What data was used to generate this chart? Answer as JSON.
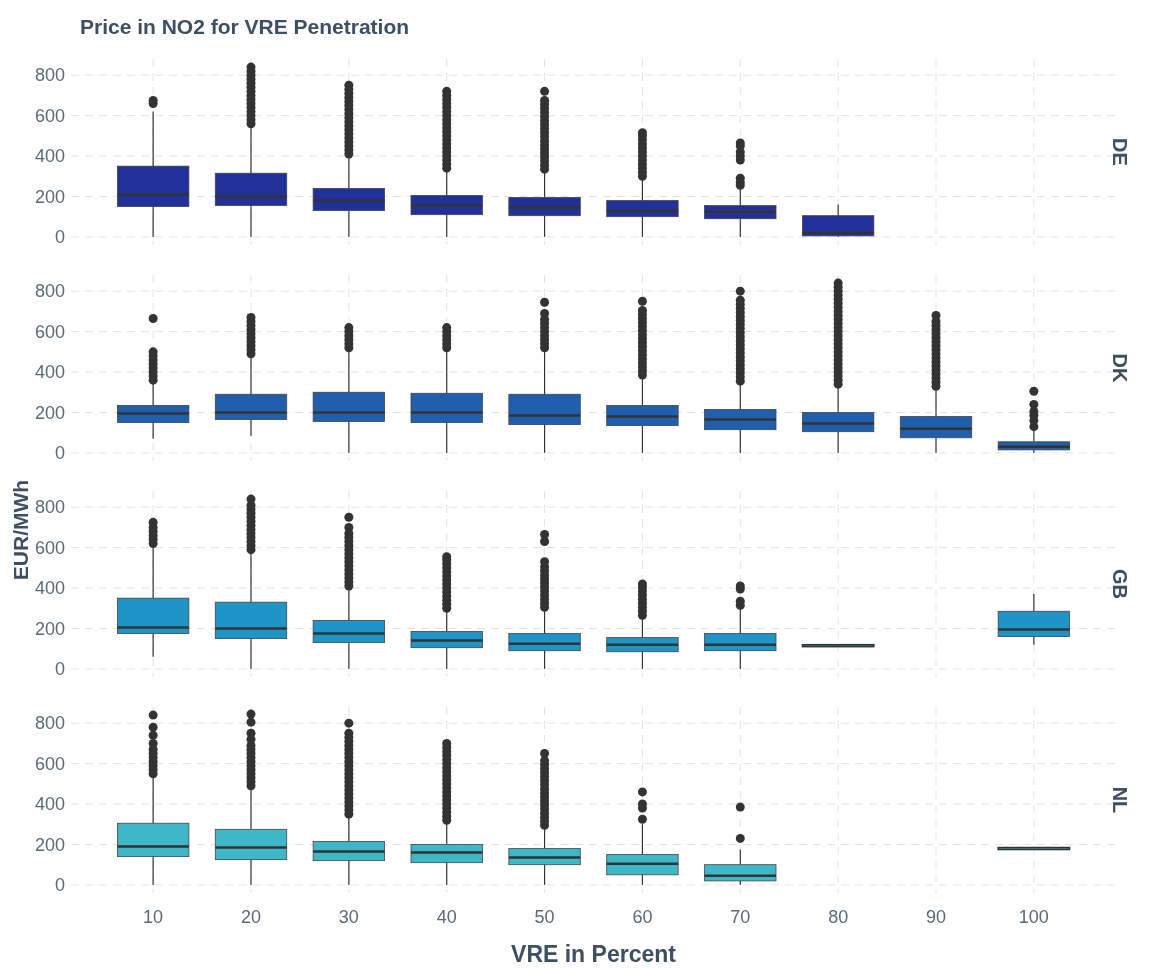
{
  "chart_data": [
    {
      "type": "box",
      "title": "Price in NO2 for VRE Penetration",
      "subtitle": "DE",
      "categories": [
        "10",
        "20",
        "30",
        "40",
        "50",
        "60",
        "70",
        "80",
        "90",
        "100"
      ],
      "color": "#22309a",
      "ylim": [
        -40,
        880
      ],
      "yticks": [
        0,
        200,
        400,
        600,
        800
      ],
      "grid": true,
      "tick_labels": "y",
      "boxes": [
        {
          "low": 0,
          "q1": 150,
          "median": 210,
          "q3": 350,
          "high": 620,
          "outliers": [
            660,
            675
          ]
        },
        {
          "low": 0,
          "q1": 155,
          "median": 200,
          "q3": 315,
          "high": 545,
          "outliers": [
            560,
            580,
            600,
            620,
            640,
            660,
            680,
            700,
            720,
            740,
            760,
            780,
            800,
            820,
            840
          ]
        },
        {
          "low": 0,
          "q1": 130,
          "median": 180,
          "q3": 240,
          "high": 400,
          "outliers": [
            410,
            430,
            450,
            470,
            490,
            510,
            530,
            550,
            570,
            590,
            610,
            630,
            650,
            670,
            690,
            710,
            730,
            750
          ]
        },
        {
          "low": 0,
          "q1": 110,
          "median": 155,
          "q3": 205,
          "high": 330,
          "outliers": [
            340,
            360,
            380,
            400,
            420,
            440,
            460,
            480,
            500,
            520,
            540,
            560,
            580,
            600,
            620,
            640,
            660,
            680,
            700,
            720
          ]
        },
        {
          "low": 0,
          "q1": 105,
          "median": 145,
          "q3": 195,
          "high": 325,
          "outliers": [
            335,
            355,
            375,
            395,
            415,
            435,
            455,
            475,
            495,
            515,
            535,
            555,
            575,
            595,
            615,
            635,
            655,
            675,
            720
          ]
        },
        {
          "low": 0,
          "q1": 100,
          "median": 130,
          "q3": 180,
          "high": 290,
          "outliers": [
            300,
            320,
            340,
            360,
            380,
            400,
            420,
            440,
            460,
            480,
            500,
            515
          ]
        },
        {
          "low": 0,
          "q1": 90,
          "median": 125,
          "q3": 155,
          "high": 240,
          "outliers": [
            255,
            270,
            290,
            380,
            400,
            420,
            450,
            465
          ]
        },
        {
          "low": 0,
          "q1": 5,
          "median": 20,
          "q3": 105,
          "high": 160
        },
        null,
        null
      ]
    },
    {
      "type": "box",
      "subtitle": "DK",
      "ylabel": "EUR/MWh",
      "categories": [
        "10",
        "20",
        "30",
        "40",
        "50",
        "60",
        "70",
        "80",
        "90",
        "100"
      ],
      "color": "#1f5fad",
      "ylim": [
        -40,
        880
      ],
      "yticks": [
        0,
        200,
        400,
        600,
        800
      ],
      "grid": true,
      "tick_labels": "y",
      "boxes": [
        {
          "low": 70,
          "q1": 150,
          "median": 195,
          "q3": 235,
          "high": 350,
          "outliers": [
            360,
            380,
            400,
            420,
            440,
            460,
            480,
            500,
            665
          ]
        },
        {
          "low": 85,
          "q1": 165,
          "median": 200,
          "q3": 290,
          "high": 480,
          "outliers": [
            490,
            510,
            530,
            550,
            570,
            590,
            610,
            630,
            650,
            670
          ]
        },
        {
          "low": 0,
          "q1": 155,
          "median": 200,
          "q3": 300,
          "high": 510,
          "outliers": [
            520,
            540,
            560,
            580,
            600,
            620
          ]
        },
        {
          "low": 0,
          "q1": 150,
          "median": 200,
          "q3": 295,
          "high": 510,
          "outliers": [
            520,
            540,
            560,
            580,
            600,
            620
          ]
        },
        {
          "low": 0,
          "q1": 140,
          "median": 185,
          "q3": 290,
          "high": 510,
          "outliers": [
            520,
            540,
            560,
            580,
            600,
            620,
            640,
            660,
            690,
            745
          ]
        },
        {
          "low": 0,
          "q1": 135,
          "median": 180,
          "q3": 235,
          "high": 375,
          "outliers": [
            385,
            405,
            425,
            445,
            465,
            485,
            505,
            525,
            545,
            565,
            585,
            605,
            625,
            645,
            665,
            685,
            705,
            750
          ]
        },
        {
          "low": 0,
          "q1": 115,
          "median": 165,
          "q3": 215,
          "high": 345,
          "outliers": [
            355,
            375,
            395,
            415,
            435,
            455,
            475,
            495,
            515,
            535,
            555,
            575,
            595,
            615,
            635,
            655,
            675,
            695,
            715,
            735,
            755,
            800
          ]
        },
        {
          "low": 0,
          "q1": 105,
          "median": 145,
          "q3": 200,
          "high": 330,
          "outliers": [
            340,
            360,
            380,
            400,
            420,
            440,
            460,
            480,
            500,
            520,
            540,
            560,
            580,
            600,
            620,
            640,
            660,
            680,
            700,
            720,
            740,
            760,
            780,
            800,
            820,
            840
          ]
        },
        {
          "low": 0,
          "q1": 75,
          "median": 120,
          "q3": 180,
          "high": 320,
          "outliers": [
            330,
            350,
            370,
            390,
            410,
            430,
            450,
            470,
            490,
            510,
            530,
            550,
            570,
            590,
            610,
            630,
            650,
            680
          ]
        },
        {
          "low": 0,
          "q1": 15,
          "median": 30,
          "q3": 55,
          "high": 110,
          "outliers": [
            130,
            160,
            185,
            205,
            240,
            305
          ]
        }
      ]
    },
    {
      "type": "box",
      "subtitle": "GB",
      "categories": [
        "10",
        "20",
        "30",
        "40",
        "50",
        "60",
        "70",
        "80",
        "90",
        "100"
      ],
      "color": "#1f94c6",
      "ylim": [
        -40,
        880
      ],
      "yticks": [
        0,
        200,
        400,
        600,
        800
      ],
      "grid": true,
      "tick_labels": "y",
      "boxes": [
        {
          "low": 60,
          "q1": 175,
          "median": 205,
          "q3": 350,
          "high": 610,
          "outliers": [
            620,
            640,
            660,
            680,
            700,
            725
          ]
        },
        {
          "low": 0,
          "q1": 150,
          "median": 200,
          "q3": 330,
          "high": 580,
          "outliers": [
            590,
            610,
            630,
            650,
            670,
            690,
            710,
            730,
            750,
            770,
            790,
            810,
            840
          ]
        },
        {
          "low": 0,
          "q1": 130,
          "median": 175,
          "q3": 240,
          "high": 400,
          "outliers": [
            410,
            430,
            450,
            470,
            490,
            510,
            530,
            550,
            570,
            590,
            610,
            630,
            650,
            670,
            700,
            750
          ]
        },
        {
          "low": 0,
          "q1": 105,
          "median": 140,
          "q3": 185,
          "high": 290,
          "outliers": [
            300,
            320,
            340,
            360,
            380,
            400,
            420,
            440,
            460,
            480,
            500,
            520,
            540,
            555
          ]
        },
        {
          "low": 0,
          "q1": 90,
          "median": 125,
          "q3": 175,
          "high": 295,
          "outliers": [
            305,
            325,
            345,
            365,
            385,
            405,
            425,
            445,
            465,
            485,
            505,
            530,
            630,
            665
          ]
        },
        {
          "low": 0,
          "q1": 85,
          "median": 120,
          "q3": 155,
          "high": 255,
          "outliers": [
            265,
            285,
            305,
            325,
            345,
            365,
            385,
            405,
            420
          ]
        },
        {
          "low": 0,
          "q1": 90,
          "median": 120,
          "q3": 175,
          "high": 300,
          "outliers": [
            315,
            335,
            395,
            410
          ]
        },
        {
          "low": 115,
          "q1": 115,
          "median": 115,
          "q3": 115,
          "high": 115
        },
        null,
        {
          "low": 120,
          "q1": 160,
          "median": 195,
          "q3": 285,
          "high": 370
        }
      ]
    },
    {
      "type": "box",
      "subtitle": "NL",
      "xlabel": "VRE in Percent",
      "categories": [
        "10",
        "20",
        "30",
        "40",
        "50",
        "60",
        "70",
        "80",
        "90",
        "100"
      ],
      "color": "#3eb8c8",
      "ylim": [
        -40,
        880
      ],
      "yticks": [
        0,
        200,
        400,
        600,
        800
      ],
      "grid": true,
      "boxes": [
        {
          "low": 0,
          "q1": 140,
          "median": 190,
          "q3": 305,
          "high": 540,
          "outliers": [
            550,
            570,
            590,
            610,
            630,
            650,
            670,
            700,
            740,
            780,
            840
          ]
        },
        {
          "low": 0,
          "q1": 125,
          "median": 185,
          "q3": 275,
          "high": 480,
          "outliers": [
            490,
            510,
            530,
            550,
            570,
            590,
            610,
            630,
            650,
            670,
            690,
            720,
            750,
            805,
            845
          ]
        },
        {
          "low": 0,
          "q1": 120,
          "median": 165,
          "q3": 215,
          "high": 340,
          "outliers": [
            350,
            370,
            390,
            410,
            430,
            450,
            470,
            490,
            510,
            530,
            550,
            570,
            590,
            610,
            630,
            650,
            670,
            690,
            710,
            730,
            750,
            800
          ]
        },
        {
          "low": 0,
          "q1": 110,
          "median": 160,
          "q3": 200,
          "high": 310,
          "outliers": [
            320,
            340,
            360,
            380,
            400,
            420,
            440,
            460,
            480,
            500,
            520,
            540,
            560,
            580,
            600,
            620,
            640,
            660,
            680,
            700
          ]
        },
        {
          "low": 0,
          "q1": 100,
          "median": 135,
          "q3": 180,
          "high": 285,
          "outliers": [
            295,
            315,
            335,
            355,
            375,
            395,
            415,
            435,
            455,
            475,
            495,
            515,
            535,
            555,
            575,
            595,
            615,
            650
          ]
        },
        {
          "low": 0,
          "q1": 50,
          "median": 105,
          "q3": 150,
          "high": 300,
          "outliers": [
            325,
            380,
            400,
            460
          ]
        },
        {
          "low": 0,
          "q1": 20,
          "median": 45,
          "q3": 100,
          "high": 175,
          "outliers": [
            230,
            385
          ]
        },
        null,
        null,
        {
          "low": 180,
          "q1": 180,
          "median": 180,
          "q3": 180,
          "high": 180
        }
      ]
    }
  ]
}
